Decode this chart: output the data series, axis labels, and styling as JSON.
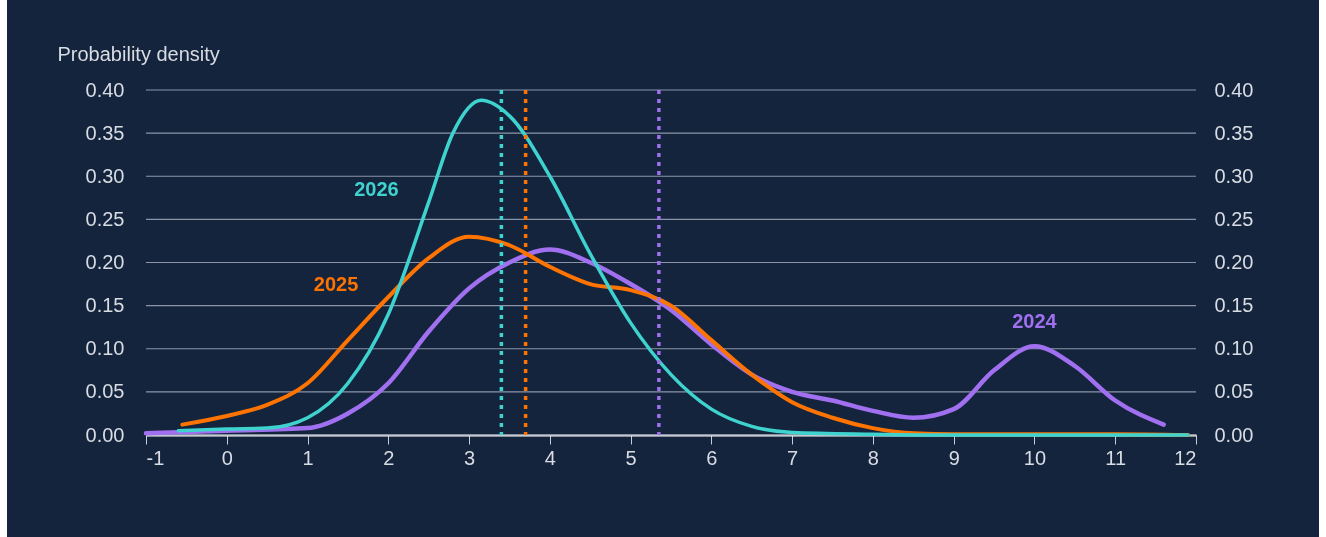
{
  "chart_data": {
    "type": "line",
    "ylabel": "Probability density",
    "xlim": [
      -1,
      12
    ],
    "xticks": [
      -1,
      0,
      1,
      2,
      3,
      4,
      5,
      6,
      7,
      8,
      9,
      10,
      11,
      12
    ],
    "ylim": [
      0,
      0.4
    ],
    "yticks": [
      {
        "value": 0,
        "label": "0.00"
      },
      {
        "value": 0.05,
        "label": "0.05"
      },
      {
        "value": 0.1,
        "label": "0.10"
      },
      {
        "value": 0.15,
        "label": "0.15"
      },
      {
        "value": 0.2,
        "label": "0.20"
      },
      {
        "value": 0.25,
        "label": "0.25"
      },
      {
        "value": 0.3,
        "label": "0.30"
      },
      {
        "value": 0.35,
        "label": "0.35"
      },
      {
        "value": 0.4,
        "label": "0.40"
      }
    ],
    "y2lim": [
      0,
      0.4
    ],
    "y2ticks": [
      {
        "value": 0,
        "label": "0.00"
      },
      {
        "value": 0.05,
        "label": "0.05"
      },
      {
        "value": 0.1,
        "label": "0.10"
      },
      {
        "value": 0.15,
        "label": "0.15"
      },
      {
        "value": 0.2,
        "label": "0.20"
      },
      {
        "value": 0.25,
        "label": "0.25"
      },
      {
        "value": 0.3,
        "label": "0.30"
      },
      {
        "value": 0.35,
        "label": "0.35"
      },
      {
        "value": 0.4,
        "label": "0.40"
      }
    ],
    "grid": "y",
    "legend": false,
    "line_style": "solid",
    "marker": "none",
    "series": [
      {
        "name": "2024",
        "color": "#a070f0",
        "x": [
          -1,
          0,
          1,
          1.5,
          2,
          2.5,
          3,
          3.5,
          4,
          4.5,
          5,
          5.5,
          6,
          6.5,
          7,
          7.5,
          8,
          8.5,
          9,
          9.5,
          10,
          10.5,
          11,
          11.6
        ],
        "values": [
          0.002,
          0.005,
          0.008,
          0.025,
          0.06,
          0.12,
          0.17,
          0.2,
          0.215,
          0.2,
          0.175,
          0.145,
          0.105,
          0.07,
          0.05,
          0.04,
          0.028,
          0.02,
          0.03,
          0.075,
          0.103,
          0.08,
          0.04,
          0.012
        ]
      },
      {
        "name": "2025",
        "color": "#ff7300",
        "x": [
          -0.55,
          0,
          0.5,
          1,
          1.5,
          2,
          2.5,
          3,
          3.5,
          4,
          4.5,
          5,
          5.5,
          6,
          6.5,
          7,
          7.5,
          8,
          8.5,
          9,
          10,
          11,
          11.9
        ],
        "values": [
          0.012,
          0.022,
          0.035,
          0.06,
          0.11,
          0.16,
          0.205,
          0.23,
          0.22,
          0.195,
          0.175,
          0.168,
          0.15,
          0.11,
          0.07,
          0.038,
          0.02,
          0.008,
          0.002,
          0.001,
          0.001,
          0.001,
          0
        ]
      },
      {
        "name": "2026",
        "color": "#3fd3cf",
        "x": [
          -0.6,
          0,
          0.5,
          1,
          1.5,
          2,
          2.5,
          2.8,
          3.15,
          3.5,
          4,
          4.5,
          5,
          5.5,
          6,
          6.5,
          7,
          8,
          9,
          10,
          11,
          11.9
        ],
        "values": [
          0.005,
          0.007,
          0.008,
          0.02,
          0.06,
          0.14,
          0.27,
          0.35,
          0.388,
          0.37,
          0.3,
          0.21,
          0.13,
          0.07,
          0.03,
          0.01,
          0.003,
          0.001,
          0,
          0,
          0,
          0
        ]
      }
    ],
    "ref_lines": [
      {
        "axis": "x",
        "value": 3.4,
        "color": "#3fd3cf",
        "line_style": "dotted"
      },
      {
        "axis": "x",
        "value": 3.7,
        "color": "#ff7300",
        "line_style": "dotted"
      },
      {
        "axis": "x",
        "value": 5.35,
        "color": "#a070f0",
        "line_style": "dotted"
      }
    ]
  }
}
